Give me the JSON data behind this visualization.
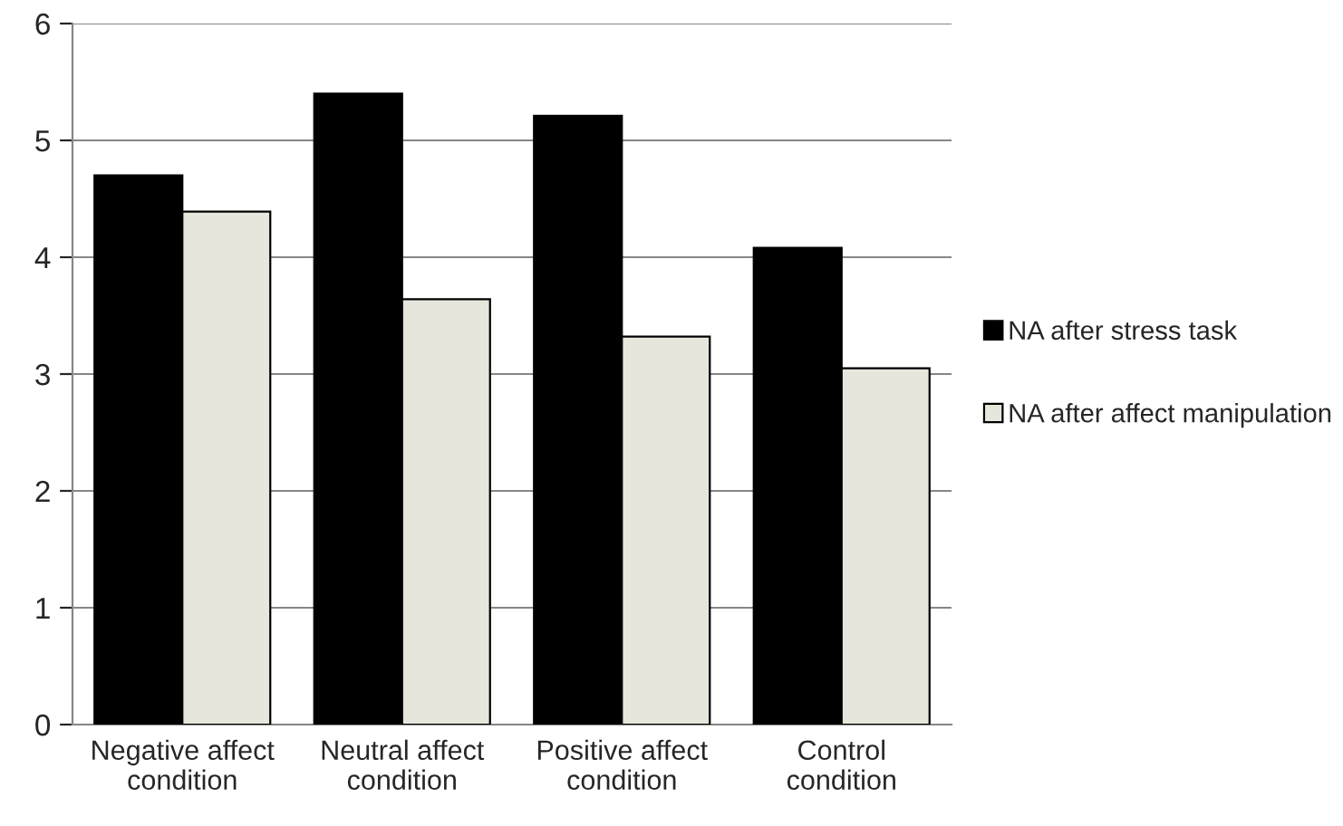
{
  "chart_data": {
    "type": "bar",
    "categories": [
      "Negative affect\ncondition",
      "Neutral affect\ncondition",
      "Positive affect\ncondition",
      "Control\ncondition"
    ],
    "series": [
      {
        "name": "NA after stress task",
        "color": "#000000",
        "values": [
          4.7,
          5.4,
          5.21,
          4.08
        ]
      },
      {
        "name": "NA after affect manipulation",
        "color": "#e6e6dc",
        "values": [
          4.39,
          3.64,
          3.32,
          3.05
        ]
      }
    ],
    "ylim": [
      0,
      6
    ],
    "yticks": [
      0,
      1,
      2,
      3,
      4,
      5,
      6
    ],
    "grid": "y",
    "legend": "right"
  }
}
